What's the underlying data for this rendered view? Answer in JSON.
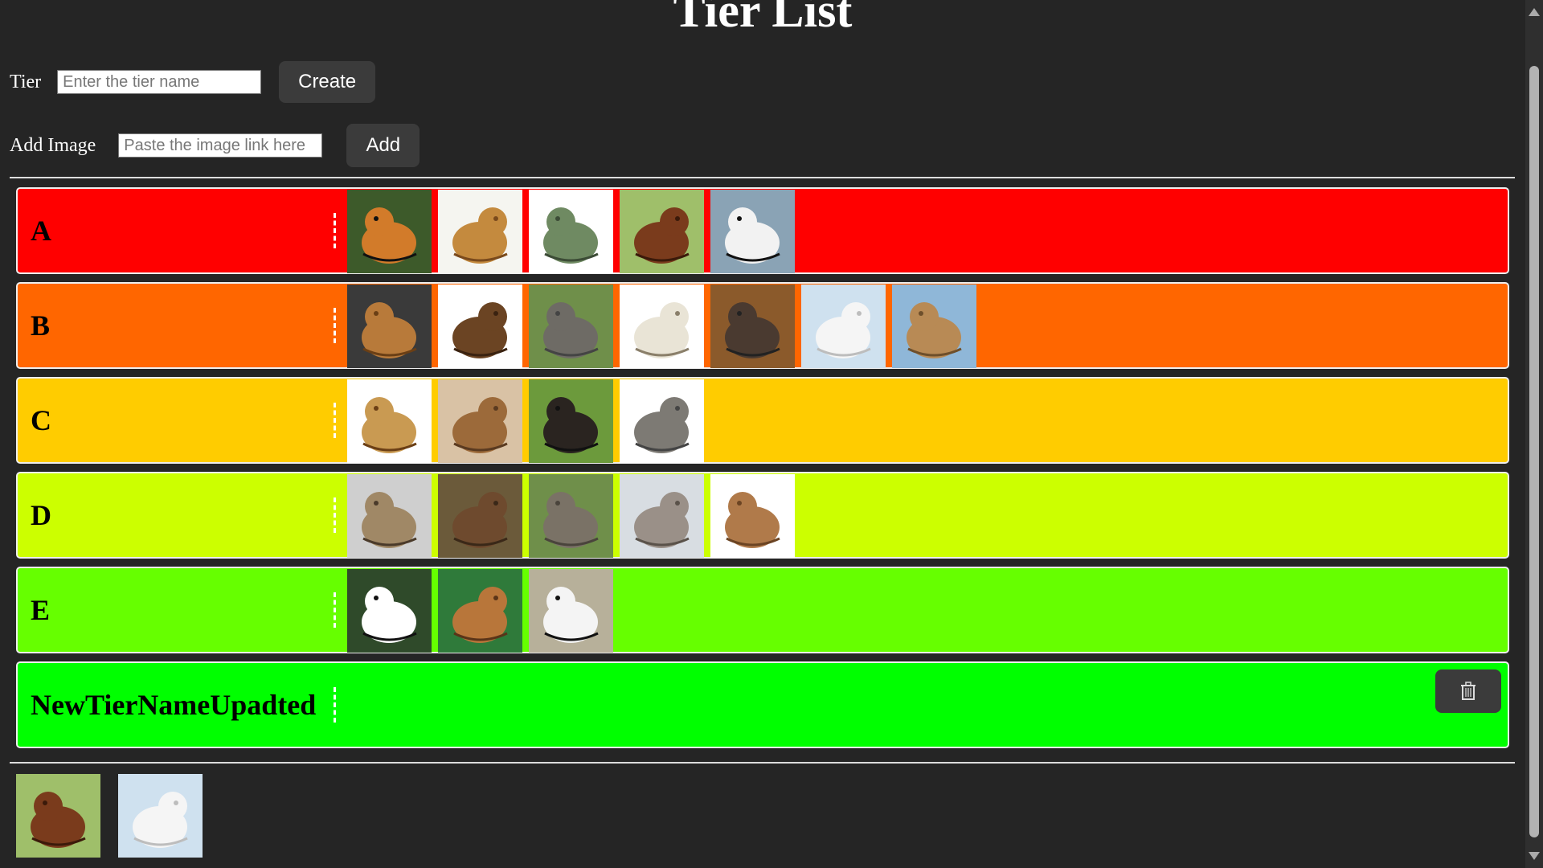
{
  "header": {
    "title": "Tier List"
  },
  "tier_form": {
    "label": "Tier",
    "placeholder": "Enter the tier name",
    "button": "Create"
  },
  "image_form": {
    "label": "Add Image",
    "placeholder": "Paste the image link here",
    "button": "Add"
  },
  "tiers": [
    {
      "name": "A",
      "color": "#ff0000",
      "images": [
        "tiger",
        "lion",
        "t-rex",
        "horse",
        "cow"
      ]
    },
    {
      "name": "B",
      "color": "#ff6600",
      "images": [
        "dog",
        "bear",
        "elephant",
        "sheep",
        "goat",
        "polar-bear",
        "camel"
      ]
    },
    {
      "name": "C",
      "color": "#ffcc00",
      "images": [
        "giraffe",
        "squirrel",
        "chimpanzee",
        "donkey"
      ]
    },
    {
      "name": "D",
      "color": "#ccff00",
      "images": [
        "hyena",
        "deer",
        "rhinoceros",
        "reindeer",
        "kangaroo"
      ]
    },
    {
      "name": "E",
      "color": "#66ff00",
      "images": [
        "panda",
        "lynx",
        "zebra"
      ]
    },
    {
      "name": "NewTierNameUpadted",
      "color": "#00ff00",
      "images": [],
      "has_delete": true
    }
  ],
  "unranked_images": [
    "horse",
    "polar-bear"
  ],
  "icons": {
    "delete": "trash-icon",
    "handle": "drag-handle-icon"
  }
}
